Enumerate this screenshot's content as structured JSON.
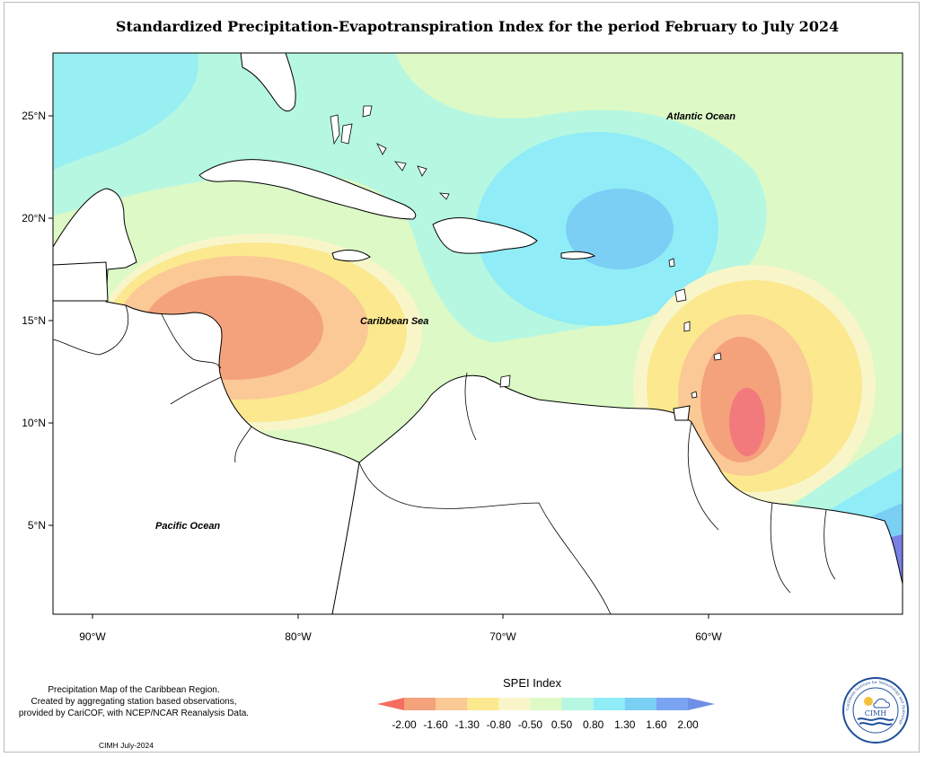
{
  "title": "Standardized Precipitation-Evapotranspiration Index for the period February to July 2024",
  "axes": {
    "lat_labels": [
      "25°N",
      "20°N",
      "15°N",
      "10°N",
      "5°N"
    ],
    "lon_labels": [
      "90°W",
      "80°W",
      "70°W",
      "60°W"
    ],
    "lon_range": [
      -92,
      -50.5
    ],
    "lat_range": [
      1,
      28.5
    ]
  },
  "places": {
    "atlantic": "Atlantic Ocean",
    "caribbean": "Caribbean Sea",
    "pacific": "Pacific Ocean"
  },
  "legend": {
    "title": "SPEI Index",
    "labels": [
      "-2.00",
      "-1.60",
      "-1.30",
      "-0.80",
      "-0.50",
      "0.50",
      "0.80",
      "1.30",
      "1.60",
      "2.00"
    ],
    "colors": [
      "#f46d5f",
      "#f4a27b",
      "#fbc995",
      "#fbe88f",
      "#f8f6c9",
      "#dcf9c6",
      "#b6f7e2",
      "#90ecf6",
      "#7bcef4",
      "#7aa4f2",
      "#6f8fe6"
    ]
  },
  "credits": {
    "line1": "Precipitation Map of the Caribbean Region.",
    "line2": "Created by aggregating station based observations,",
    "line3": "provided by CariCOF, with NCEP/NCAR Reanalysis Data.",
    "date": "CIMH July-2024"
  },
  "logo": {
    "name": "CIMH",
    "ring_text": "Caribbean Institute for Meteorology and Hydrology"
  },
  "colors": {
    "dry_core": "#f27a7c",
    "wet_core": "#7a80e6"
  }
}
